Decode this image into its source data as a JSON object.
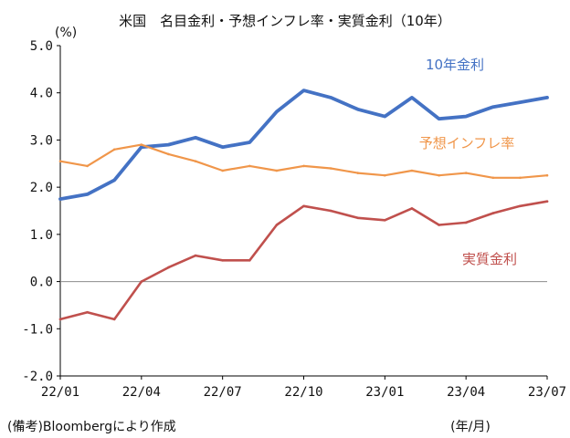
{
  "title": "米国　名目金利・予想インフレ率・実質金利（10年）",
  "unit_label": "(%)",
  "source_note": "(備考)Bloombergにより作成",
  "x_unit_label": "(年/月)",
  "chart_data": {
    "type": "line",
    "title": "米国　名目金利・予想インフレ率・実質金利（10年）",
    "ylabel": "(%)",
    "xlabel": "(年/月)",
    "ylim": [
      -2.0,
      5.0
    ],
    "yticks": [
      "5.0",
      "4.0",
      "3.0",
      "2.0",
      "1.0",
      "0.0",
      "-1.0",
      "-2.0"
    ],
    "yticks_values": [
      5.0,
      4.0,
      3.0,
      2.0,
      1.0,
      0.0,
      -1.0,
      -2.0
    ],
    "xticks": [
      "22/01",
      "22/04",
      "22/07",
      "22/10",
      "23/01",
      "23/04",
      "23/07"
    ],
    "grid": false,
    "legend": "inline labels",
    "x": [
      "22/01",
      "22/02",
      "22/03",
      "22/04",
      "22/05",
      "22/06",
      "22/07",
      "22/08",
      "22/09",
      "22/10",
      "22/11",
      "22/12",
      "23/01",
      "23/02",
      "23/03",
      "23/04",
      "23/05",
      "23/06",
      "23/07"
    ],
    "series": [
      {
        "name": "10年金利",
        "color": "#4472c4",
        "values": [
          1.75,
          1.85,
          2.15,
          2.85,
          2.9,
          3.05,
          2.85,
          2.95,
          3.6,
          4.05,
          3.9,
          3.65,
          3.5,
          3.9,
          3.45,
          3.5,
          3.7,
          3.8,
          3.9
        ]
      },
      {
        "name": "予想インフレ率",
        "color": "#f0964a",
        "values": [
          2.55,
          2.45,
          2.8,
          2.9,
          2.7,
          2.55,
          2.35,
          2.45,
          2.35,
          2.45,
          2.4,
          2.3,
          2.25,
          2.35,
          2.25,
          2.3,
          2.2,
          2.2,
          2.25
        ]
      },
      {
        "name": "実質金利",
        "color": "#c0504d",
        "values": [
          -0.8,
          -0.65,
          -0.8,
          0.0,
          0.3,
          0.55,
          0.45,
          0.45,
          1.2,
          1.6,
          1.5,
          1.35,
          1.3,
          1.55,
          1.2,
          1.25,
          1.45,
          1.6,
          1.7
        ]
      }
    ]
  }
}
